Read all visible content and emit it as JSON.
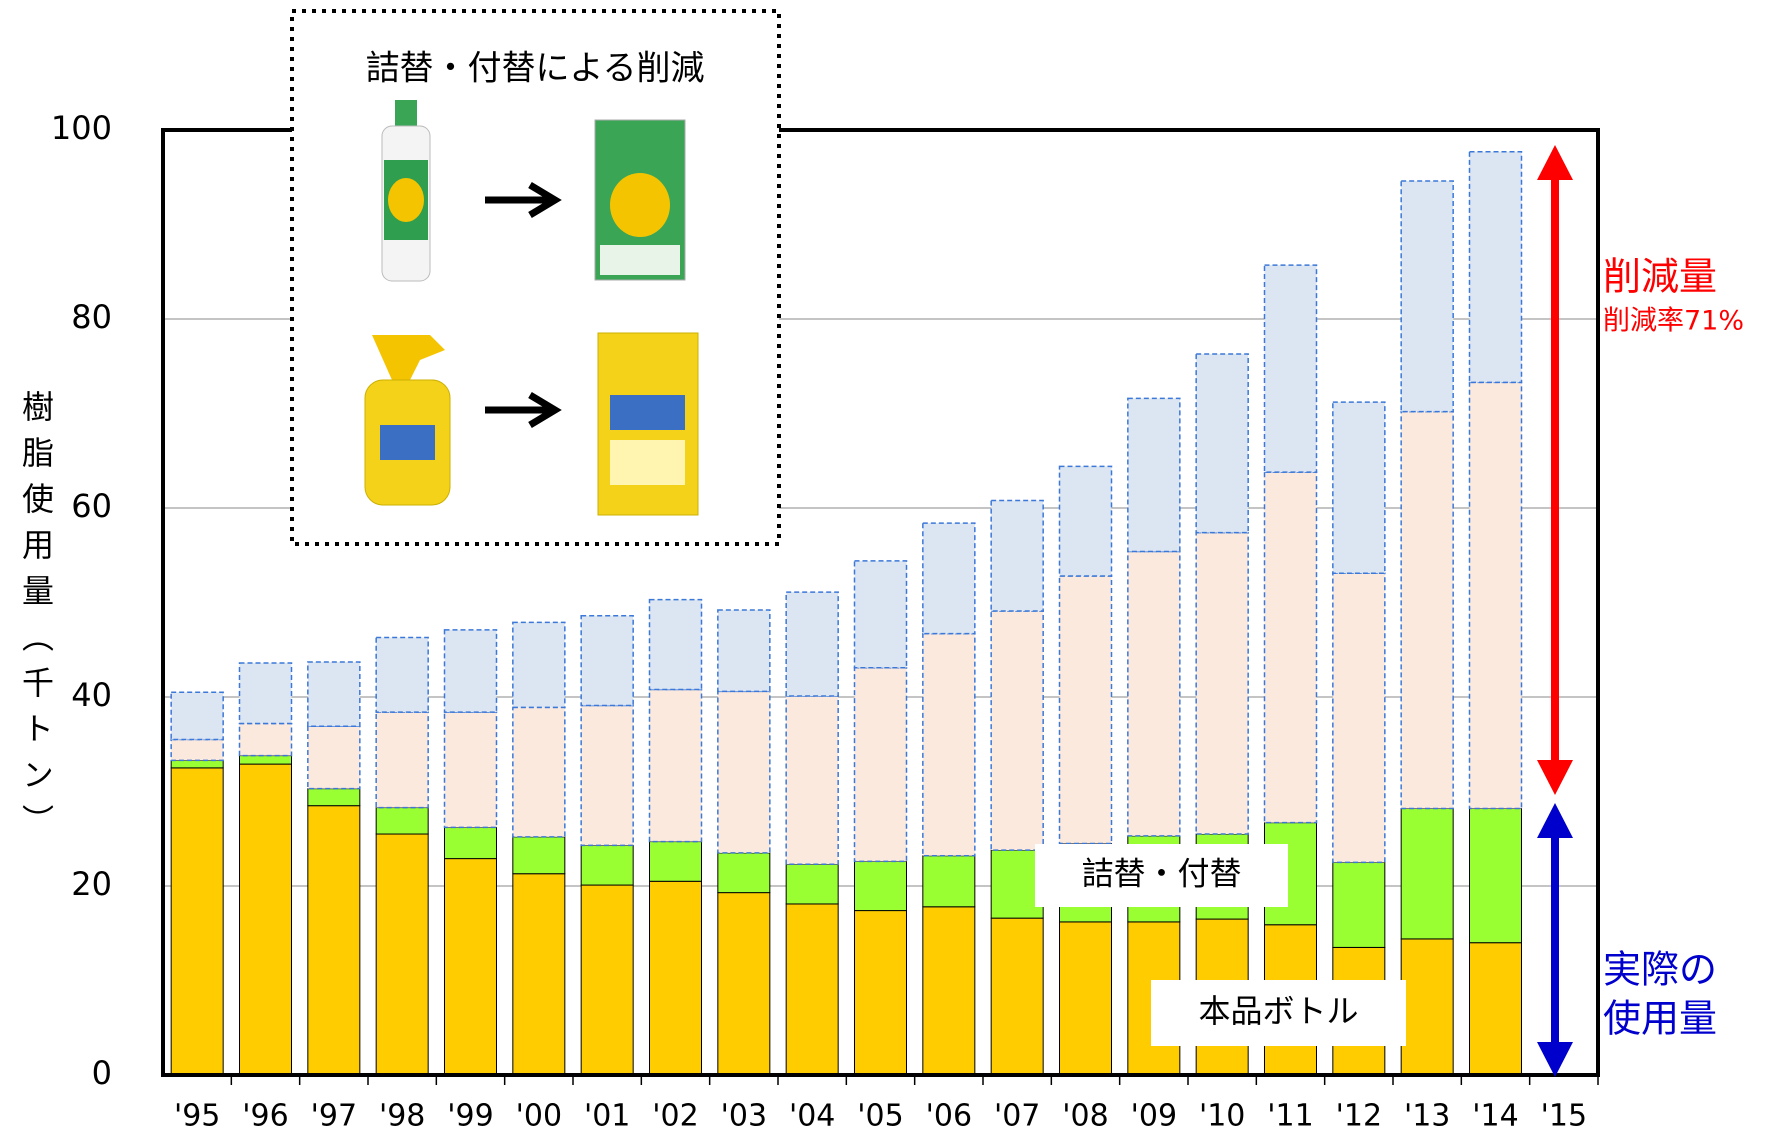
{
  "chart_data": {
    "type": "stacked_bar",
    "ylabel": "樹脂使用量（千トン）",
    "categories": [
      "'95",
      "'96",
      "'97",
      "'98",
      "'99",
      "'00",
      "'01",
      "'02",
      "'03",
      "'04",
      "'05",
      "'06",
      "'07",
      "'08",
      "'09",
      "'10",
      "'11",
      "'12",
      "'13",
      "'14",
      "'15"
    ],
    "series": [
      {
        "name": "本品ボトル",
        "color": "#ffcc00",
        "values": [
          32.5,
          32.9,
          28.5,
          25.5,
          22.9,
          21.3,
          20.1,
          20.5,
          19.3,
          18.1,
          17.4,
          17.8,
          16.6,
          16.2,
          16.2,
          16.5,
          15.9,
          13.5,
          14.4,
          14.0,
          null
        ]
      },
      {
        "name": "詰替・付替",
        "color": "#99ff33",
        "values": [
          0.8,
          0.9,
          1.8,
          2.8,
          3.3,
          3.9,
          4.2,
          4.2,
          4.2,
          4.2,
          5.2,
          5.4,
          7.2,
          8.3,
          9.1,
          9.0,
          10.8,
          9.0,
          13.8,
          14.2,
          null
        ]
      },
      {
        "color": "#fbe9dd",
        "dashed": true,
        "values": [
          2.2,
          3.4,
          6.6,
          10.1,
          12.2,
          13.7,
          14.8,
          16.1,
          17.1,
          17.8,
          20.5,
          23.5,
          25.3,
          28.3,
          30.1,
          31.9,
          37.1,
          30.6,
          42.0,
          45.1,
          null
        ]
      },
      {
        "color": "#dce6f2",
        "dashed": true,
        "values": [
          5.0,
          6.4,
          6.8,
          7.9,
          8.7,
          9.0,
          9.5,
          9.5,
          8.6,
          11.0,
          11.3,
          11.7,
          11.7,
          11.6,
          16.2,
          18.9,
          21.9,
          18.1,
          24.4,
          24.4,
          null
        ]
      }
    ],
    "ylim": [
      0,
      100
    ],
    "yticks": [
      0,
      20,
      40,
      60,
      80,
      100
    ],
    "grid": true,
    "inset_title": "詰替・付替による削減",
    "reduction_label": "削減量",
    "reduction_rate": "削減率71%",
    "actual_label": [
      "実際の",
      "使用量"
    ]
  }
}
